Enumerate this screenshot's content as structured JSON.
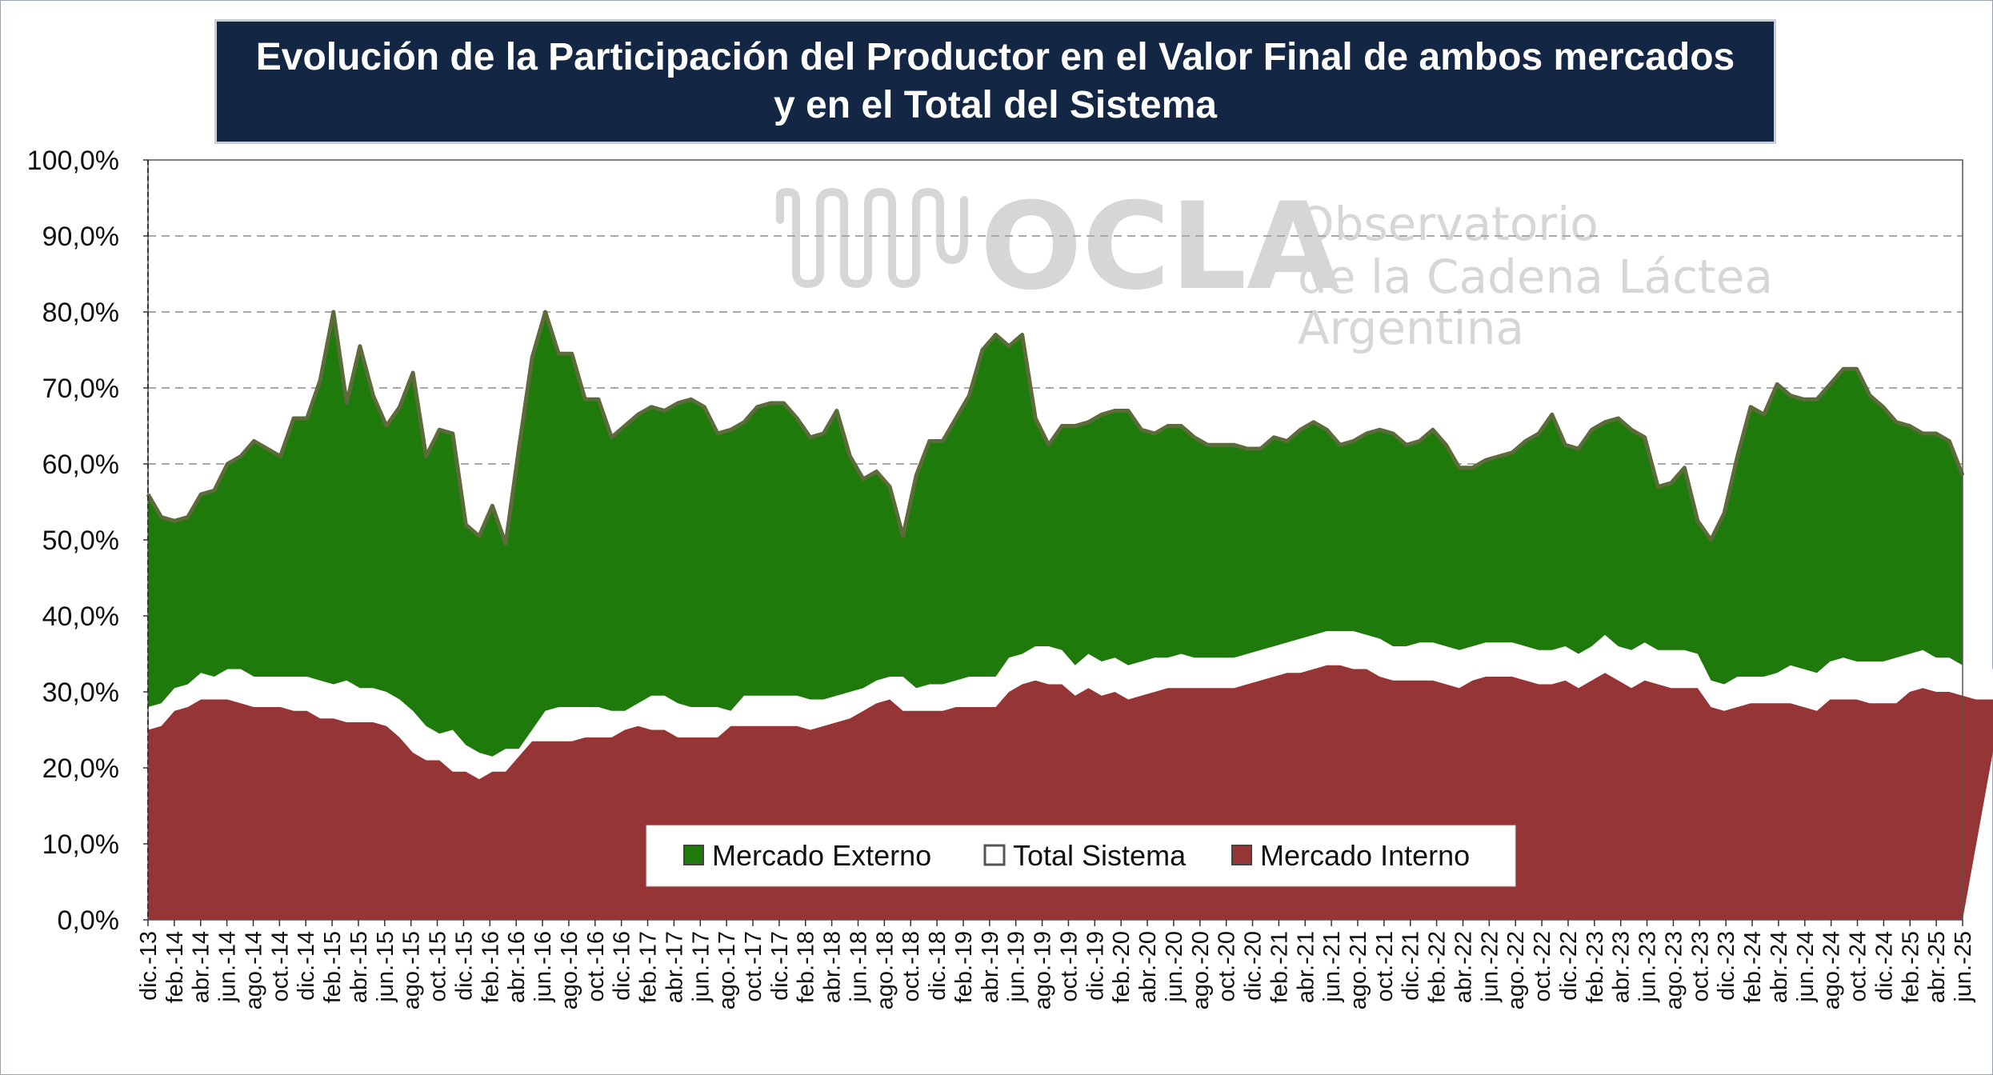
{
  "chart_data": {
    "type": "area",
    "title": "Evolución de la Participación del Productor en el Valor Final de ambos mercados",
    "subtitle": "y en el Total del Sistema",
    "xlabel": "",
    "ylabel": "",
    "ylim": [
      0,
      100
    ],
    "yticks": [
      "0,0%",
      "10,0%",
      "20,0%",
      "30,0%",
      "40,0%",
      "50,0%",
      "60,0%",
      "70,0%",
      "80,0%",
      "90,0%",
      "100,0%"
    ],
    "xtick_labels": [
      "dic.-13",
      "feb.-14",
      "abr.-14",
      "jun.-14",
      "ago.-14",
      "oct.-14",
      "dic.-14",
      "feb.-15",
      "abr.-15",
      "jun.-15",
      "ago.-15",
      "oct.-15",
      "dic.-15",
      "feb.-16",
      "abr.-16",
      "jun.-16",
      "ago.-16",
      "oct.-16",
      "dic.-16",
      "feb.-17",
      "abr.-17",
      "jun.-17",
      "ago.-17",
      "oct.-17",
      "dic.-17",
      "feb.-18",
      "abr.-18",
      "jun.-18",
      "ago.-18",
      "oct.-18",
      "dic.-18",
      "feb.-19",
      "abr.-19",
      "jun.-19",
      "ago.-19",
      "oct.-19",
      "dic.-19",
      "feb.-20",
      "abr.-20",
      "jun.-20",
      "ago.-20",
      "oct.-20",
      "dic.-20",
      "feb.-21",
      "abr.-21",
      "jun.-21",
      "ago.-21",
      "oct.-21",
      "dic.-21",
      "feb.-22",
      "abr.-22",
      "jun.-22",
      "ago.-22",
      "oct.-22",
      "dic.-22",
      "feb.-23",
      "abr.-23",
      "jun.-23",
      "ago.-23",
      "oct.-23",
      "dic.-23",
      "feb.-24",
      "abr.-24",
      "jun.-24",
      "ago.-24",
      "oct.-24",
      "dic.-24",
      "feb.-25",
      "abr.-25",
      "jun.-25"
    ],
    "legend_position": "bottom-center",
    "grid": "horizontal-dashed",
    "series": [
      {
        "name": "Mercado Externo",
        "color": "#1e7a0a",
        "values": [
          56,
          53,
          52.5,
          53,
          56,
          56.5,
          60,
          61,
          63,
          62,
          61,
          66,
          66,
          71,
          80,
          68,
          75.5,
          69,
          65,
          67.5,
          72,
          61,
          64.5,
          64,
          52,
          50.5,
          54.5,
          49.5,
          62,
          74,
          80,
          74.5,
          74.5,
          68.5,
          68.5,
          63.5,
          65,
          66.5,
          67.5,
          67,
          68,
          68.5,
          67.5,
          64,
          64.5,
          65.5,
          67.5,
          68,
          68,
          66,
          63.5,
          64,
          67,
          61,
          58,
          59,
          57,
          50.5,
          58.5,
          63,
          63,
          66,
          69,
          75,
          77,
          75.5,
          77,
          66,
          62.5,
          65,
          65,
          65.5,
          66.5,
          67,
          67,
          64.5,
          64,
          65,
          65,
          63.5,
          62.5,
          62.5,
          62.5,
          62,
          62,
          63.5,
          63,
          64.5,
          65.5,
          64.5,
          62.5,
          63,
          64,
          64.5,
          64,
          62.5,
          63,
          64.5,
          62.5,
          59.5,
          59.5,
          60.5,
          61,
          61.5,
          63,
          64,
          66.5,
          62.5,
          62,
          64.5,
          65.5,
          66,
          64.5,
          63.5,
          57,
          57.5,
          59.5,
          52.5,
          50,
          53.5,
          61,
          67.5,
          66.5,
          70.5,
          69,
          68.5,
          68.5,
          70.5,
          72.5,
          72.5,
          69,
          67.5,
          65.5,
          65,
          64,
          64,
          63,
          58.5
        ]
      },
      {
        "name": "Total Sistema",
        "color": "#ffffff",
        "values": [
          28,
          28.5,
          30.5,
          31,
          32.5,
          32,
          33,
          33,
          32,
          32,
          32,
          32,
          32,
          31.5,
          31,
          31.5,
          30.5,
          30.5,
          30,
          29,
          27.5,
          25.5,
          24.5,
          25,
          23,
          22,
          21.5,
          22.5,
          22.5,
          25,
          27.5,
          28,
          28,
          28,
          28,
          27.5,
          27.5,
          28.5,
          29.5,
          29.5,
          28.5,
          28,
          28,
          28,
          27.5,
          29.5,
          29.5,
          29.5,
          29.5,
          29.5,
          29,
          29,
          29.5,
          30,
          30.5,
          31.5,
          32,
          32,
          30.5,
          31,
          31,
          31.5,
          32,
          32,
          32,
          34.5,
          35,
          36,
          36,
          35.5,
          33.5,
          35,
          34,
          34.5,
          33.5,
          34,
          34.5,
          34.5,
          35,
          34.5,
          34.5,
          34.5,
          34.5,
          35,
          35.5,
          36,
          36.5,
          37,
          37.5,
          38,
          38,
          38,
          37.5,
          37,
          36,
          36,
          36.5,
          36.5,
          36,
          35.5,
          36,
          36.5,
          36.5,
          36.5,
          36,
          35.5,
          35.5,
          36,
          35,
          36,
          37.5,
          36,
          35.5,
          36.5,
          35.5,
          35.5,
          35.5,
          35,
          31.5,
          31,
          32,
          32,
          32,
          32.5,
          33.5,
          33,
          32.5,
          34,
          34.5,
          34,
          34,
          34,
          34.5,
          35,
          35.5,
          34.5,
          34.5,
          33.5,
          33.5,
          33,
          33
        ]
      },
      {
        "name": "Mercado Interno",
        "color": "#963535",
        "values": [
          25,
          25.5,
          27.5,
          28,
          29,
          29,
          29,
          28.5,
          28,
          28,
          28,
          27.5,
          27.5,
          26.5,
          26.5,
          26,
          26,
          26,
          25.5,
          24,
          22,
          21,
          21,
          19.5,
          19.5,
          18.5,
          19.5,
          19.5,
          21.5,
          23.5,
          23.5,
          23.5,
          23.5,
          24,
          24,
          24,
          25,
          25.5,
          25,
          25,
          24,
          24,
          24,
          24,
          25.5,
          25.5,
          25.5,
          25.5,
          25.5,
          25.5,
          25,
          25.5,
          26,
          26.5,
          27.5,
          28.5,
          29,
          27.5,
          27.5,
          27.5,
          27.5,
          28,
          28,
          28,
          28,
          30,
          31,
          31.5,
          31,
          31,
          29.5,
          30.5,
          29.5,
          30,
          29,
          29.5,
          30,
          30.5,
          30.5,
          30.5,
          30.5,
          30.5,
          30.5,
          31,
          31.5,
          32,
          32.5,
          32.5,
          33,
          33.5,
          33.5,
          33,
          33,
          32,
          31.5,
          31.5,
          31.5,
          31.5,
          31,
          30.5,
          31.5,
          32,
          32,
          32,
          31.5,
          31,
          31,
          31.5,
          30.5,
          31.5,
          32.5,
          31.5,
          30.5,
          31.5,
          31,
          30.5,
          30.5,
          30.5,
          28,
          27.5,
          28,
          28.5,
          28.5,
          28.5,
          28.5,
          28,
          27.5,
          29,
          29,
          29,
          28.5,
          28.5,
          28.5,
          30,
          30.5,
          30,
          30,
          29.5,
          29,
          29,
          29
        ]
      }
    ]
  },
  "watermark": {
    "brand": "OCLA",
    "line1": "Observatorio",
    "line2": "de la Cadena Láctea",
    "line3": "Argentina"
  }
}
